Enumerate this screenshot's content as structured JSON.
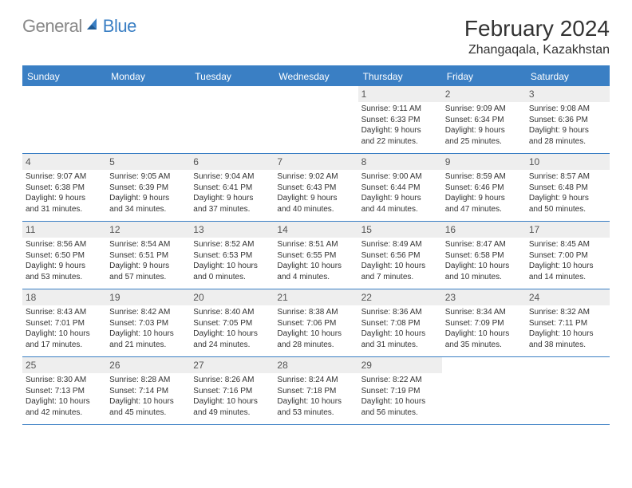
{
  "brand": {
    "part1": "General",
    "part2": "Blue"
  },
  "title": "February 2024",
  "location": "Zhangaqala, Kazakhstan",
  "colors": {
    "accent": "#3a7fc4",
    "weekday_bg": "#3a7fc4",
    "weekday_text": "#ffffff",
    "daynum_bg": "#eeeeee",
    "border": "#3a7fc4",
    "text": "#333333",
    "logo_gray": "#888888"
  },
  "weekdays": [
    "Sunday",
    "Monday",
    "Tuesday",
    "Wednesday",
    "Thursday",
    "Friday",
    "Saturday"
  ],
  "weeks": [
    [
      {
        "n": "",
        "l": [
          "",
          "",
          "",
          ""
        ]
      },
      {
        "n": "",
        "l": [
          "",
          "",
          "",
          ""
        ]
      },
      {
        "n": "",
        "l": [
          "",
          "",
          "",
          ""
        ]
      },
      {
        "n": "",
        "l": [
          "",
          "",
          "",
          ""
        ]
      },
      {
        "n": "1",
        "l": [
          "Sunrise: 9:11 AM",
          "Sunset: 6:33 PM",
          "Daylight: 9 hours",
          "and 22 minutes."
        ]
      },
      {
        "n": "2",
        "l": [
          "Sunrise: 9:09 AM",
          "Sunset: 6:34 PM",
          "Daylight: 9 hours",
          "and 25 minutes."
        ]
      },
      {
        "n": "3",
        "l": [
          "Sunrise: 9:08 AM",
          "Sunset: 6:36 PM",
          "Daylight: 9 hours",
          "and 28 minutes."
        ]
      }
    ],
    [
      {
        "n": "4",
        "l": [
          "Sunrise: 9:07 AM",
          "Sunset: 6:38 PM",
          "Daylight: 9 hours",
          "and 31 minutes."
        ]
      },
      {
        "n": "5",
        "l": [
          "Sunrise: 9:05 AM",
          "Sunset: 6:39 PM",
          "Daylight: 9 hours",
          "and 34 minutes."
        ]
      },
      {
        "n": "6",
        "l": [
          "Sunrise: 9:04 AM",
          "Sunset: 6:41 PM",
          "Daylight: 9 hours",
          "and 37 minutes."
        ]
      },
      {
        "n": "7",
        "l": [
          "Sunrise: 9:02 AM",
          "Sunset: 6:43 PM",
          "Daylight: 9 hours",
          "and 40 minutes."
        ]
      },
      {
        "n": "8",
        "l": [
          "Sunrise: 9:00 AM",
          "Sunset: 6:44 PM",
          "Daylight: 9 hours",
          "and 44 minutes."
        ]
      },
      {
        "n": "9",
        "l": [
          "Sunrise: 8:59 AM",
          "Sunset: 6:46 PM",
          "Daylight: 9 hours",
          "and 47 minutes."
        ]
      },
      {
        "n": "10",
        "l": [
          "Sunrise: 8:57 AM",
          "Sunset: 6:48 PM",
          "Daylight: 9 hours",
          "and 50 minutes."
        ]
      }
    ],
    [
      {
        "n": "11",
        "l": [
          "Sunrise: 8:56 AM",
          "Sunset: 6:50 PM",
          "Daylight: 9 hours",
          "and 53 minutes."
        ]
      },
      {
        "n": "12",
        "l": [
          "Sunrise: 8:54 AM",
          "Sunset: 6:51 PM",
          "Daylight: 9 hours",
          "and 57 minutes."
        ]
      },
      {
        "n": "13",
        "l": [
          "Sunrise: 8:52 AM",
          "Sunset: 6:53 PM",
          "Daylight: 10 hours",
          "and 0 minutes."
        ]
      },
      {
        "n": "14",
        "l": [
          "Sunrise: 8:51 AM",
          "Sunset: 6:55 PM",
          "Daylight: 10 hours",
          "and 4 minutes."
        ]
      },
      {
        "n": "15",
        "l": [
          "Sunrise: 8:49 AM",
          "Sunset: 6:56 PM",
          "Daylight: 10 hours",
          "and 7 minutes."
        ]
      },
      {
        "n": "16",
        "l": [
          "Sunrise: 8:47 AM",
          "Sunset: 6:58 PM",
          "Daylight: 10 hours",
          "and 10 minutes."
        ]
      },
      {
        "n": "17",
        "l": [
          "Sunrise: 8:45 AM",
          "Sunset: 7:00 PM",
          "Daylight: 10 hours",
          "and 14 minutes."
        ]
      }
    ],
    [
      {
        "n": "18",
        "l": [
          "Sunrise: 8:43 AM",
          "Sunset: 7:01 PM",
          "Daylight: 10 hours",
          "and 17 minutes."
        ]
      },
      {
        "n": "19",
        "l": [
          "Sunrise: 8:42 AM",
          "Sunset: 7:03 PM",
          "Daylight: 10 hours",
          "and 21 minutes."
        ]
      },
      {
        "n": "20",
        "l": [
          "Sunrise: 8:40 AM",
          "Sunset: 7:05 PM",
          "Daylight: 10 hours",
          "and 24 minutes."
        ]
      },
      {
        "n": "21",
        "l": [
          "Sunrise: 8:38 AM",
          "Sunset: 7:06 PM",
          "Daylight: 10 hours",
          "and 28 minutes."
        ]
      },
      {
        "n": "22",
        "l": [
          "Sunrise: 8:36 AM",
          "Sunset: 7:08 PM",
          "Daylight: 10 hours",
          "and 31 minutes."
        ]
      },
      {
        "n": "23",
        "l": [
          "Sunrise: 8:34 AM",
          "Sunset: 7:09 PM",
          "Daylight: 10 hours",
          "and 35 minutes."
        ]
      },
      {
        "n": "24",
        "l": [
          "Sunrise: 8:32 AM",
          "Sunset: 7:11 PM",
          "Daylight: 10 hours",
          "and 38 minutes."
        ]
      }
    ],
    [
      {
        "n": "25",
        "l": [
          "Sunrise: 8:30 AM",
          "Sunset: 7:13 PM",
          "Daylight: 10 hours",
          "and 42 minutes."
        ]
      },
      {
        "n": "26",
        "l": [
          "Sunrise: 8:28 AM",
          "Sunset: 7:14 PM",
          "Daylight: 10 hours",
          "and 45 minutes."
        ]
      },
      {
        "n": "27",
        "l": [
          "Sunrise: 8:26 AM",
          "Sunset: 7:16 PM",
          "Daylight: 10 hours",
          "and 49 minutes."
        ]
      },
      {
        "n": "28",
        "l": [
          "Sunrise: 8:24 AM",
          "Sunset: 7:18 PM",
          "Daylight: 10 hours",
          "and 53 minutes."
        ]
      },
      {
        "n": "29",
        "l": [
          "Sunrise: 8:22 AM",
          "Sunset: 7:19 PM",
          "Daylight: 10 hours",
          "and 56 minutes."
        ]
      },
      {
        "n": "",
        "l": [
          "",
          "",
          "",
          ""
        ]
      },
      {
        "n": "",
        "l": [
          "",
          "",
          "",
          ""
        ]
      }
    ]
  ]
}
